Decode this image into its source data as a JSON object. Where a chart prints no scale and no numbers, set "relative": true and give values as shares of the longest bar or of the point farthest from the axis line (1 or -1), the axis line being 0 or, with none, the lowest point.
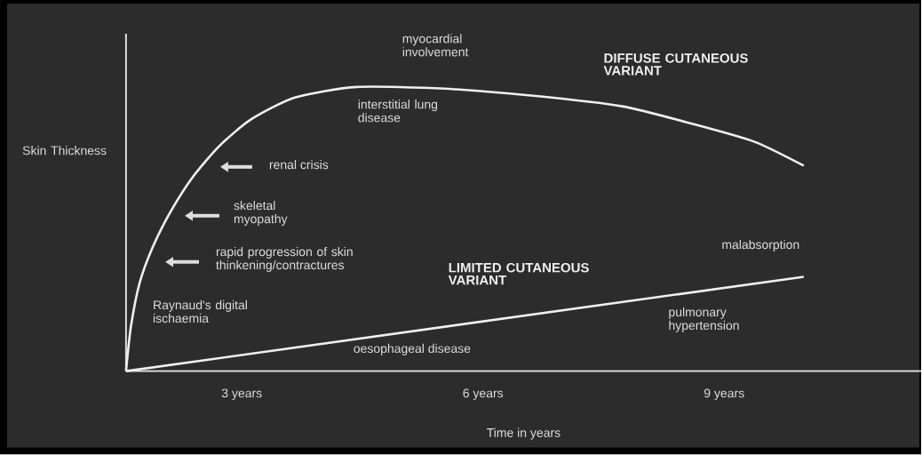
{
  "chart_data": {
    "type": "line",
    "relative": true,
    "ylabel": "Skin Thickness",
    "xlabel": "Time in years",
    "x": [
      1.56,
      1.62,
      1.73,
      1.89,
      2.11,
      2.39,
      2.72,
      3.11,
      3.66,
      4.43,
      5.53,
      6.63,
      7.73,
      8.61,
      9.38,
      9.99
    ],
    "xlim": [
      1.56,
      11.45
    ],
    "xticks": [
      {
        "value": 3,
        "label": "3 years"
      },
      {
        "value": 6,
        "label": "6 years"
      },
      {
        "value": 9,
        "label": "9 years"
      }
    ],
    "series": [
      {
        "name": "DIFFUSE CUTANEOUS VARIANT",
        "color": "#f0f0f0",
        "values": [
          0,
          0.155,
          0.311,
          0.435,
          0.559,
          0.683,
          0.792,
          0.885,
          0.963,
          1.0,
          0.994,
          0.969,
          0.932,
          0.87,
          0.807,
          0.723
        ]
      },
      {
        "name": "LIMITED CUTANEOUS VARIANT",
        "color": "#f0f0f0",
        "x": [
          1.56,
          9.99
        ],
        "values": [
          0,
          0.332
        ]
      }
    ],
    "annotations": [
      "myocardial involvement",
      "interstitial lung disease",
      "renal crisis",
      "skeletal myopathy",
      "rapid progression of skin thinkening/contractures",
      "Raynaud's digital ischaemia",
      "oesophageal disease",
      "malabsorption",
      "pulmonary hypertension"
    ],
    "legend": false,
    "marker": "none",
    "line_style": "solid",
    "grid": false
  }
}
